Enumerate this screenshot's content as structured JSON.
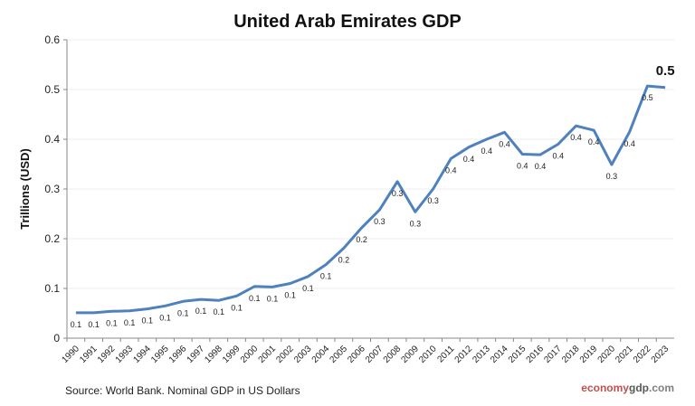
{
  "chart_data": {
    "type": "line",
    "title": "United Arab Emirates GDP",
    "ylabel": "Trillions (USD)",
    "xlabel": "",
    "ylim": [
      0,
      0.6
    ],
    "yticks": [
      "0",
      "0.1",
      "0.2",
      "0.3",
      "0.4",
      "0.5",
      "0.6"
    ],
    "grid": true,
    "x": [
      "1990",
      "1991",
      "1992",
      "1993",
      "1994",
      "1995",
      "1996",
      "1997",
      "1998",
      "1999",
      "2000",
      "2001",
      "2002",
      "2003",
      "2004",
      "2005",
      "2006",
      "2007",
      "2008",
      "2009",
      "2010",
      "2011",
      "2012",
      "2013",
      "2014",
      "2015",
      "2016",
      "2017",
      "2018",
      "2019",
      "2020",
      "2021",
      "2022",
      "2023"
    ],
    "values": [
      0.051,
      0.051,
      0.054,
      0.055,
      0.059,
      0.065,
      0.074,
      0.078,
      0.076,
      0.085,
      0.104,
      0.103,
      0.11,
      0.124,
      0.148,
      0.181,
      0.222,
      0.258,
      0.315,
      0.254,
      0.3,
      0.361,
      0.384,
      0.4,
      0.414,
      0.37,
      0.369,
      0.39,
      0.427,
      0.418,
      0.349,
      0.415,
      0.507,
      0.504
    ],
    "data_labels": [
      "0.1",
      "0.1",
      "0.1",
      "0.1",
      "0.1",
      "0.1",
      "0.1",
      "0.1",
      "0.1",
      "0.1",
      "0.1",
      "0.1",
      "0.1",
      "0.1",
      "0.1",
      "0.2",
      "0.2",
      "0.3",
      "0.3",
      "0.3",
      "0.3",
      "0.4",
      "0.4",
      "0.4",
      "0.4",
      "0.4",
      "0.4",
      "0.4",
      "0.4",
      "0.4",
      "0.3",
      "0.4",
      "0.5",
      ""
    ],
    "last_value_label": "0.5",
    "line_color": "#4f81bd",
    "source": "Source:  World Bank.  Nominal GDP  in US Dollars",
    "brand": {
      "part1": "economy",
      "part2": "gdp",
      "part3": ".com"
    }
  }
}
